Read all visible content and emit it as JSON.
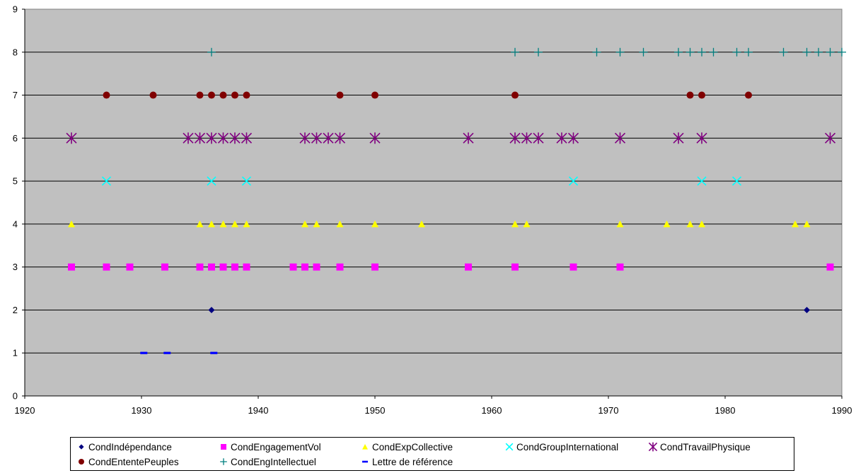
{
  "chart_data": {
    "type": "scatter",
    "title": "",
    "xlabel": "",
    "ylabel": "",
    "xlim": [
      1920,
      1990
    ],
    "ylim": [
      0,
      9
    ],
    "x_ticks": [
      "1920",
      "1930",
      "1940",
      "1950",
      "1960",
      "1970",
      "1980",
      "1990"
    ],
    "y_ticks": [
      "0",
      "1",
      "2",
      "3",
      "4",
      "5",
      "6",
      "7",
      "8",
      "9"
    ],
    "grid": "horizontal",
    "plot_background": "#c0c0c0",
    "legend_position": "bottom",
    "series": [
      {
        "name": "CondIndépendance",
        "marker": "diamond",
        "color": "#000080",
        "y": 2,
        "x": [
          1936,
          1987
        ]
      },
      {
        "name": "CondEngagementVol",
        "marker": "square",
        "color": "#ff00ff",
        "y": 3,
        "x": [
          1924,
          1927,
          1929,
          1932,
          1935,
          1936,
          1937,
          1938,
          1939,
          1943,
          1944,
          1945,
          1947,
          1950,
          1958,
          1962,
          1967,
          1971,
          1989
        ]
      },
      {
        "name": "CondExpCollective",
        "marker": "triangle",
        "color": "#ffff00",
        "y": 4,
        "x": [
          1924,
          1935,
          1936,
          1937,
          1938,
          1939,
          1944,
          1945,
          1947,
          1950,
          1954,
          1962,
          1963,
          1971,
          1975,
          1977,
          1978,
          1986,
          1987
        ]
      },
      {
        "name": "CondGroupInternational",
        "marker": "x",
        "color": "#00ffff",
        "y": 5,
        "x": [
          1927,
          1936,
          1939,
          1967,
          1978,
          1981
        ]
      },
      {
        "name": "CondTravailPhysique",
        "marker": "asterisk",
        "color": "#800080",
        "y": 6,
        "x": [
          1924,
          1934,
          1935,
          1936,
          1937,
          1938,
          1939,
          1944,
          1945,
          1946,
          1947,
          1950,
          1958,
          1962,
          1963,
          1964,
          1966,
          1967,
          1971,
          1976,
          1978,
          1989
        ]
      },
      {
        "name": "CondEntentePeuples",
        "marker": "circle",
        "color": "#800000",
        "y": 7,
        "x": [
          1927,
          1931,
          1935,
          1936,
          1937,
          1938,
          1939,
          1947,
          1950,
          1962,
          1977,
          1978,
          1982
        ]
      },
      {
        "name": "CondEngIntellectuel",
        "marker": "plus",
        "color": "#008080",
        "y": 8,
        "x": [
          1936,
          1962,
          1964,
          1969,
          1971,
          1973,
          1976,
          1977,
          1978,
          1979,
          1981,
          1982,
          1985,
          1987,
          1988,
          1989,
          1990
        ]
      },
      {
        "name": "Lettre de référence",
        "marker": "dash",
        "color": "#0000ff",
        "y": 1,
        "x": [
          1930.2,
          1932.2,
          1936.2
        ]
      }
    ]
  }
}
